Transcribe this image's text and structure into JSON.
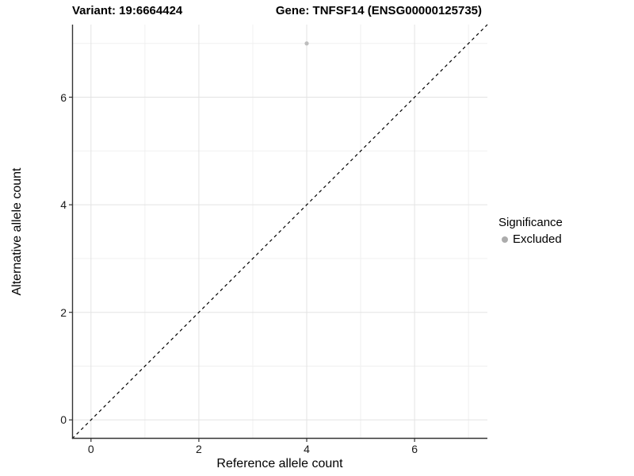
{
  "titles": {
    "left": "Variant: 19:6664424",
    "right": "Gene: TNFSF14 (ENSG00000125735)"
  },
  "chart_data": {
    "type": "scatter",
    "xlabel": "Reference allele count",
    "ylabel": "Alternative allele count",
    "xlim": [
      -0.35,
      7.35
    ],
    "ylim": [
      -0.35,
      7.35
    ],
    "x_ticks": [
      0,
      2,
      4,
      6
    ],
    "y_ticks": [
      0,
      2,
      4,
      6
    ],
    "x_minor_gridlines": [
      1,
      3,
      5,
      7
    ],
    "y_minor_gridlines": [
      1,
      3,
      5,
      7
    ],
    "grid": true,
    "series": [
      {
        "name": "Excluded",
        "points": [
          {
            "x": 4,
            "y": 7
          }
        ]
      }
    ],
    "identity_line": {
      "slope": 1,
      "intercept": 0,
      "style": "dashed"
    },
    "legend": {
      "title": "Significance",
      "position": "right",
      "items": [
        {
          "label": "Excluded"
        }
      ]
    },
    "colors": {
      "point": "#bdbdbd",
      "legend_dot": "#acacac",
      "major_grid": "#e3e3e3",
      "minor_grid": "#f0f0f0",
      "axis_line": "#333333",
      "tick_mark": "#333333",
      "identity_line": "#000000"
    }
  }
}
